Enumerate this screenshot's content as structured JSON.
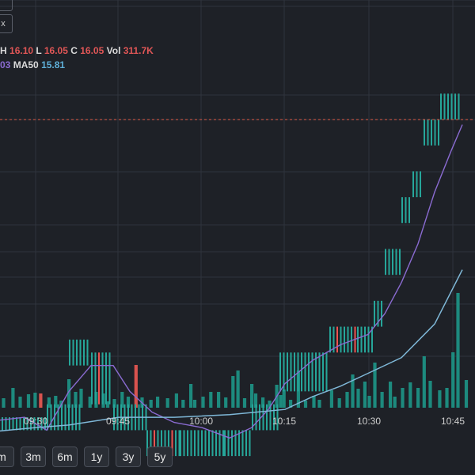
{
  "legend": {
    "high_label": "H",
    "high_value": "16.10",
    "low_label": "L",
    "low_value": "16.05",
    "close_label": "C",
    "close_value": "16.05",
    "vol_label": "Vol",
    "vol_value": "311.7K",
    "ma_partial_value": "03",
    "ma50_label": "MA50",
    "ma50_value": "15.81"
  },
  "top_button_text": "x",
  "ranges": [
    "m",
    "3m",
    "6m",
    "1y",
    "3y",
    "5y"
  ],
  "colors": {
    "up": "#26a69a",
    "down": "#ef5350",
    "ma_short": "#8a6bd1",
    "ma50": "#7fb8d8",
    "price_line": "#e05a47",
    "grid": "#2f343c",
    "background": "#1e2127"
  },
  "chart_data": {
    "type": "candlestick",
    "x_ticks": [
      "09:30",
      "09:45",
      "10:00",
      "10:15",
      "10:30",
      "10:45"
    ],
    "last_price_line": 16.05,
    "price_ylim": [
      14.35,
      16.55
    ],
    "segments": [
      {
        "time_start": "09:20",
        "time_end": "09:32",
        "open": 14.9,
        "close": 14.85,
        "color": "up"
      },
      {
        "time_start": "09:32",
        "time_end": "09:38",
        "open": 14.95,
        "close": 14.85,
        "color": "up"
      },
      {
        "time_start": "09:36",
        "time_end": "09:40",
        "open": 15.2,
        "close": 15.1,
        "color": "up"
      },
      {
        "time_start": "09:40",
        "time_end": "09:44",
        "open": 15.15,
        "close": 14.95,
        "color": "mixed"
      },
      {
        "time_start": "09:44",
        "time_end": "09:50",
        "open": 14.95,
        "close": 14.85,
        "color": "up"
      },
      {
        "time_start": "09:50",
        "time_end": "09:56",
        "open": 14.85,
        "close": 14.75,
        "color": "mixed"
      },
      {
        "time_start": "09:56",
        "time_end": "10:04",
        "open": 14.85,
        "close": 14.75,
        "color": "up"
      },
      {
        "time_start": "10:04",
        "time_end": "10:09",
        "open": 14.85,
        "close": 14.75,
        "color": "up"
      },
      {
        "time_start": "10:09",
        "time_end": "10:14",
        "open": 14.95,
        "close": 14.85,
        "color": "up"
      },
      {
        "time_start": "10:14",
        "time_end": "10:23",
        "open": 15.15,
        "close": 15.0,
        "color": "up"
      },
      {
        "time_start": "10:23",
        "time_end": "10:28",
        "open": 15.25,
        "close": 15.15,
        "color": "mixed"
      },
      {
        "time_start": "10:28",
        "time_end": "10:31",
        "open": 15.25,
        "close": 15.15,
        "color": "up"
      },
      {
        "time_start": "10:31",
        "time_end": "10:33",
        "open": 15.35,
        "close": 15.25,
        "color": "up"
      },
      {
        "time_start": "10:33",
        "time_end": "10:36",
        "open": 15.55,
        "close": 15.45,
        "color": "up"
      },
      {
        "time_start": "10:36",
        "time_end": "10:38",
        "open": 15.75,
        "close": 15.65,
        "color": "up"
      },
      {
        "time_start": "10:38",
        "time_end": "10:40",
        "open": 15.85,
        "close": 15.75,
        "color": "up"
      },
      {
        "time_start": "10:40",
        "time_end": "10:43",
        "open": 16.05,
        "close": 15.95,
        "color": "up"
      },
      {
        "time_start": "10:43",
        "time_end": "10:47",
        "open": 16.15,
        "close": 16.05,
        "color": "up"
      }
    ],
    "ma_short": [
      {
        "x": "09:20",
        "y": 14.88
      },
      {
        "x": "09:28",
        "y": 14.9
      },
      {
        "x": "09:32",
        "y": 14.85
      },
      {
        "x": "09:36",
        "y": 15.0
      },
      {
        "x": "09:40",
        "y": 15.1
      },
      {
        "x": "09:44",
        "y": 15.1
      },
      {
        "x": "09:47",
        "y": 15.0
      },
      {
        "x": "09:51",
        "y": 14.92
      },
      {
        "x": "09:55",
        "y": 14.88
      },
      {
        "x": "10:00",
        "y": 14.86
      },
      {
        "x": "10:05",
        "y": 14.82
      },
      {
        "x": "10:09",
        "y": 14.86
      },
      {
        "x": "10:12",
        "y": 14.93
      },
      {
        "x": "10:15",
        "y": 15.03
      },
      {
        "x": "10:20",
        "y": 15.12
      },
      {
        "x": "10:25",
        "y": 15.18
      },
      {
        "x": "10:30",
        "y": 15.22
      },
      {
        "x": "10:33",
        "y": 15.3
      },
      {
        "x": "10:36",
        "y": 15.42
      },
      {
        "x": "10:39",
        "y": 15.57
      },
      {
        "x": "10:42",
        "y": 15.77
      },
      {
        "x": "10:45",
        "y": 15.93
      },
      {
        "x": "10:47",
        "y": 16.03
      }
    ],
    "ma50": [
      {
        "x": "09:20",
        "y": 14.84
      },
      {
        "x": "09:30",
        "y": 14.86
      },
      {
        "x": "09:36",
        "y": 14.87
      },
      {
        "x": "09:45",
        "y": 14.9
      },
      {
        "x": "09:55",
        "y": 14.9
      },
      {
        "x": "10:05",
        "y": 14.91
      },
      {
        "x": "10:15",
        "y": 14.93
      },
      {
        "x": "10:20",
        "y": 14.98
      },
      {
        "x": "10:25",
        "y": 15.02
      },
      {
        "x": "10:30",
        "y": 15.07
      },
      {
        "x": "10:36",
        "y": 15.13
      },
      {
        "x": "10:42",
        "y": 15.26
      },
      {
        "x": "10:47",
        "y": 15.47
      }
    ],
    "volume_bars": [
      {
        "time_minutes": 0.2,
        "height": 33,
        "color": "up"
      },
      {
        "time_minutes": 2.0,
        "height": 40,
        "color": "up"
      },
      {
        "time_minutes": 4.0,
        "height": 12,
        "color": "up"
      },
      {
        "time_minutes": 5.7,
        "height": 25,
        "color": "up"
      },
      {
        "time_minutes": 7.0,
        "height": 14,
        "color": "up"
      },
      {
        "time_minutes": 8.5,
        "height": 17,
        "color": "up"
      },
      {
        "time_minutes": 9.7,
        "height": 19,
        "color": "up"
      },
      {
        "time_minutes": 10.7,
        "height": 18,
        "color": "down"
      },
      {
        "time_minutes": 12.2,
        "height": 13,
        "color": "up"
      },
      {
        "time_minutes": 13.4,
        "height": 15,
        "color": "up"
      },
      {
        "time_minutes": 14.4,
        "height": 9,
        "color": "up"
      },
      {
        "time_minutes": 15.8,
        "height": 36,
        "color": "up"
      },
      {
        "time_minutes": 17.0,
        "height": 20,
        "color": "up"
      },
      {
        "time_minutes": 18.0,
        "height": 24,
        "color": "up"
      },
      {
        "time_minutes": 19.6,
        "height": 14,
        "color": "up"
      },
      {
        "time_minutes": 20.7,
        "height": 20,
        "color": "up"
      },
      {
        "time_minutes": 22.0,
        "height": 18,
        "color": "up"
      },
      {
        "time_minutes": 22.8,
        "height": 8,
        "color": "up"
      },
      {
        "time_minutes": 24.0,
        "height": 11,
        "color": "up"
      },
      {
        "time_minutes": 25.4,
        "height": 20,
        "color": "up"
      },
      {
        "time_minutes": 26.5,
        "height": 14,
        "color": "up"
      },
      {
        "time_minutes": 27.9,
        "height": 54,
        "color": "down"
      },
      {
        "time_minutes": 29.0,
        "height": 13,
        "color": "up"
      },
      {
        "time_minutes": 30.6,
        "height": 10,
        "color": "up"
      },
      {
        "time_minutes": 31.8,
        "height": 14,
        "color": "up"
      },
      {
        "time_minutes": 33.6,
        "height": 12,
        "color": "up"
      },
      {
        "time_minutes": 35.2,
        "height": 18,
        "color": "up"
      },
      {
        "time_minutes": 36.4,
        "height": 10,
        "color": "up"
      },
      {
        "time_minutes": 37.8,
        "height": 30,
        "color": "up"
      },
      {
        "time_minutes": 38.5,
        "height": 10,
        "color": "up"
      },
      {
        "time_minutes": 40.0,
        "height": 14,
        "color": "up"
      },
      {
        "time_minutes": 41.4,
        "height": 20,
        "color": "up"
      },
      {
        "time_minutes": 42.8,
        "height": 20,
        "color": "up"
      },
      {
        "time_minutes": 44.1,
        "height": 13,
        "color": "up"
      },
      {
        "time_minutes": 45.4,
        "height": 40,
        "color": "up"
      },
      {
        "time_minutes": 46.3,
        "height": 47,
        "color": "up"
      },
      {
        "time_minutes": 47.5,
        "height": 12,
        "color": "up"
      },
      {
        "time_minutes": 48.8,
        "height": 30,
        "color": "up"
      },
      {
        "time_minutes": 49.5,
        "height": 18,
        "color": "up"
      },
      {
        "time_minutes": 50.8,
        "height": 13,
        "color": "up"
      },
      {
        "time_minutes": 52.0,
        "height": 9,
        "color": "up"
      },
      {
        "time_minutes": 53.3,
        "height": 29,
        "color": "up"
      },
      {
        "time_minutes": 54.0,
        "height": 16,
        "color": "up"
      },
      {
        "time_minutes": 54.6,
        "height": 23,
        "color": "up"
      },
      {
        "time_minutes": 55.8,
        "height": 10,
        "color": "up"
      },
      {
        "time_minutes": 57.2,
        "height": 47,
        "color": "up"
      },
      {
        "time_minutes": 58.5,
        "height": 9,
        "color": "up"
      },
      {
        "time_minutes": 60.0,
        "height": 15,
        "color": "up"
      },
      {
        "time_minutes": 61.0,
        "height": 10,
        "color": "up"
      },
      {
        "time_minutes": 63.2,
        "height": 22,
        "color": "up"
      },
      {
        "time_minutes": 64.6,
        "height": 12,
        "color": "up"
      },
      {
        "time_minutes": 66.0,
        "height": 20,
        "color": "up"
      },
      {
        "time_minutes": 67.0,
        "height": 42,
        "color": "up"
      },
      {
        "time_minutes": 68.0,
        "height": 24,
        "color": "up"
      },
      {
        "time_minutes": 69.2,
        "height": 33,
        "color": "up"
      },
      {
        "time_minutes": 70.0,
        "height": 15,
        "color": "up"
      },
      {
        "time_minutes": 71.0,
        "height": 57,
        "color": "up"
      },
      {
        "time_minutes": 72.3,
        "height": 20,
        "color": "up"
      },
      {
        "time_minutes": 73.8,
        "height": 33,
        "color": "up"
      },
      {
        "time_minutes": 74.6,
        "height": 14,
        "color": "up"
      },
      {
        "time_minutes": 76.0,
        "height": 25,
        "color": "up"
      },
      {
        "time_minutes": 77.4,
        "height": 32,
        "color": "up"
      },
      {
        "time_minutes": 78.8,
        "height": 25,
        "color": "up"
      },
      {
        "time_minutes": 79.9,
        "height": 65,
        "color": "up"
      },
      {
        "time_minutes": 81.0,
        "height": 34,
        "color": "up"
      },
      {
        "time_minutes": 82.7,
        "height": 22,
        "color": "up"
      },
      {
        "time_minutes": 84.0,
        "height": 25,
        "color": "up"
      },
      {
        "time_minutes": 85.1,
        "height": 70,
        "color": "up"
      },
      {
        "time_minutes": 86.0,
        "height": 145,
        "color": "up"
      },
      {
        "time_minutes": 87.5,
        "height": 35,
        "color": "up"
      }
    ]
  }
}
